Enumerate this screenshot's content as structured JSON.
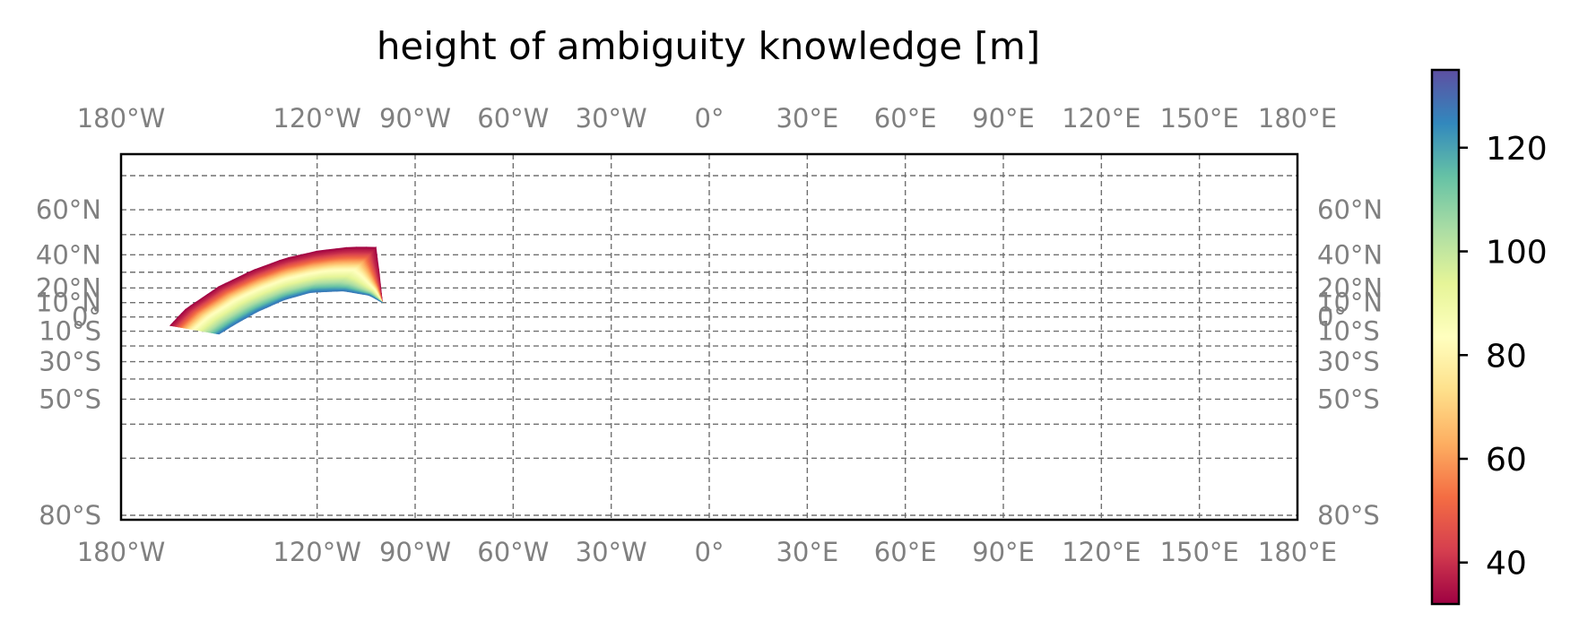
{
  "chart_data": {
    "type": "heatmap",
    "title": "height of ambiguity knowledge [m]",
    "xlabel": "",
    "ylabel": "",
    "xlim": [
      -180,
      180
    ],
    "ylim": [
      -80,
      70
    ],
    "grid": true,
    "x_ticks": [
      {
        "value": -180,
        "label": "180°W"
      },
      {
        "value": -120,
        "label": "120°W"
      },
      {
        "value": -90,
        "label": "90°W"
      },
      {
        "value": -60,
        "label": "60°W"
      },
      {
        "value": -30,
        "label": "30°W"
      },
      {
        "value": 0,
        "label": "0°"
      },
      {
        "value": 30,
        "label": "30°E"
      },
      {
        "value": 60,
        "label": "60°E"
      },
      {
        "value": 90,
        "label": "90°E"
      },
      {
        "value": 120,
        "label": "120°E"
      },
      {
        "value": 150,
        "label": "150°E"
      },
      {
        "value": 180,
        "label": "180°E"
      }
    ],
    "y_ticks": [
      {
        "value": 60,
        "label": "60°N"
      },
      {
        "value": 40,
        "label": "40°N"
      },
      {
        "value": 20,
        "label": "20°N"
      },
      {
        "value": 10,
        "label": "10°N"
      },
      {
        "value": 0,
        "label": "0°"
      },
      {
        "value": -10,
        "label": "10°S"
      },
      {
        "value": -30,
        "label": "30°S"
      },
      {
        "value": -50,
        "label": "50°S"
      },
      {
        "value": -80,
        "label": "80°S"
      }
    ],
    "extra_grid_lat": [
      70,
      50,
      30,
      -20,
      -40,
      -60,
      -70
    ],
    "swath": {
      "outer_edge": [
        [
          -165,
          -6
        ],
        [
          -160,
          6
        ],
        [
          -150,
          21
        ],
        [
          -140,
          31
        ],
        [
          -130,
          38
        ],
        [
          -120,
          42
        ],
        [
          -110,
          44
        ],
        [
          -102,
          44
        ],
        [
          -101,
          30
        ],
        [
          -100,
          10
        ]
      ],
      "inner_edge": [
        [
          -150,
          -12
        ],
        [
          -145,
          -5
        ],
        [
          -138,
          4
        ],
        [
          -130,
          12
        ],
        [
          -122,
          17
        ],
        [
          -112,
          18
        ],
        [
          -104,
          15
        ],
        [
          -100,
          10
        ]
      ],
      "values_across_track": [
        32,
        40,
        52,
        66,
        80,
        88,
        96,
        104,
        115,
        128
      ]
    },
    "colorbar": {
      "colormap": "Spectral",
      "range": [
        32,
        135
      ],
      "ticks": [
        40,
        60,
        80,
        100,
        120
      ],
      "colors": [
        "#9e0142",
        "#d53e4f",
        "#f46d43",
        "#fdae61",
        "#fee08b",
        "#ffffbf",
        "#e6f598",
        "#abdda4",
        "#66c2a5",
        "#3288bd",
        "#5e4fa2"
      ]
    }
  }
}
